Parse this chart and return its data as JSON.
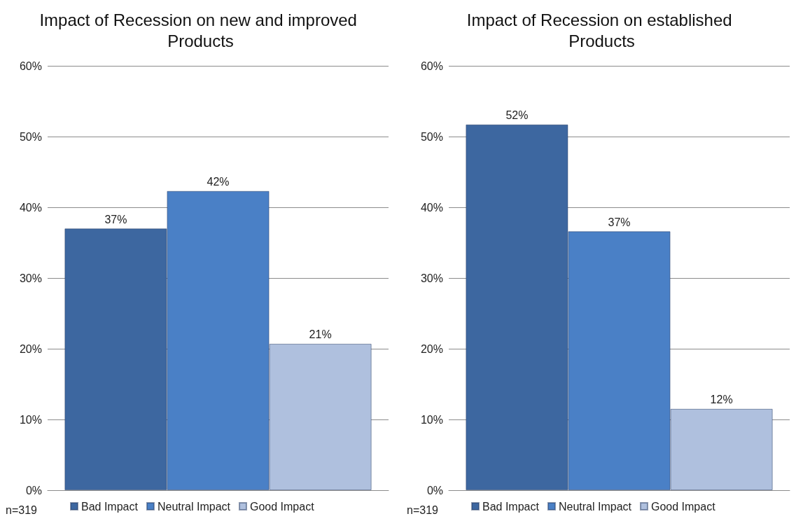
{
  "chart_data": [
    {
      "type": "bar",
      "title": "Impact of Recession on new and improved Products",
      "categories": [
        null
      ],
      "series": [
        {
          "name": "Bad Impact",
          "color": "#3d67a0",
          "values": [
            37
          ],
          "value_labels": [
            "37%"
          ]
        },
        {
          "name": "Neutral Impact",
          "color": "#4a80c6",
          "values": [
            42.3
          ],
          "value_labels": [
            "42%"
          ]
        },
        {
          "name": "Good Impact",
          "color": "#afc0de",
          "values": [
            20.7
          ],
          "value_labels": [
            "21%"
          ]
        }
      ],
      "ylim": [
        0,
        60
      ],
      "yticks": [
        {
          "value": 0,
          "label": "0%"
        },
        {
          "value": 10,
          "label": "10%"
        },
        {
          "value": 20,
          "label": "20%"
        },
        {
          "value": 30,
          "label": "30%"
        },
        {
          "value": 40,
          "label": "40%"
        },
        {
          "value": 50,
          "label": "50%"
        },
        {
          "value": 60,
          "label": "60%"
        }
      ],
      "grid": "y",
      "legend": "bottom",
      "annotations": [
        "n=319"
      ]
    },
    {
      "type": "bar",
      "title": "Impact of Recession on established Products",
      "categories": [
        null
      ],
      "series": [
        {
          "name": "Bad Impact",
          "color": "#3d67a0",
          "values": [
            51.7
          ],
          "value_labels": [
            "52%"
          ]
        },
        {
          "name": "Neutral Impact",
          "color": "#4a80c6",
          "values": [
            36.6
          ],
          "value_labels": [
            "37%"
          ]
        },
        {
          "name": "Good Impact",
          "color": "#afc0de",
          "values": [
            11.5
          ],
          "value_labels": [
            "12%"
          ]
        }
      ],
      "ylim": [
        0,
        60
      ],
      "yticks": [
        {
          "value": 0,
          "label": "0%"
        },
        {
          "value": 10,
          "label": "10%"
        },
        {
          "value": 20,
          "label": "20%"
        },
        {
          "value": 30,
          "label": "30%"
        },
        {
          "value": 40,
          "label": "40%"
        },
        {
          "value": 50,
          "label": "50%"
        },
        {
          "value": 60,
          "label": "60%"
        }
      ],
      "grid": "y",
      "legend": "bottom",
      "annotations": [
        "n=319"
      ]
    }
  ]
}
